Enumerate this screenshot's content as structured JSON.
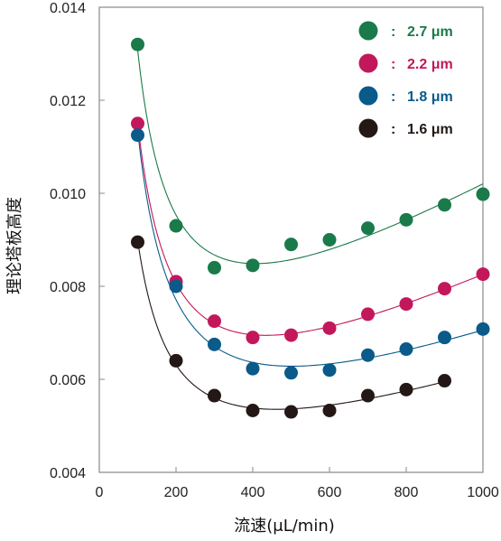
{
  "chart_data": {
    "type": "scatter",
    "xlabel": "流速(μL/min)",
    "ylabel": "理论塔板高度",
    "xlim": [
      0,
      1000
    ],
    "ylim": [
      0.004,
      0.014
    ],
    "xticks": [
      "0",
      "200",
      "400",
      "600",
      "800",
      "1000"
    ],
    "yticks": [
      "0.004",
      "0.006",
      "0.008",
      "0.010",
      "0.012",
      "0.014"
    ],
    "grid": false,
    "legend_position": "top-right",
    "series": [
      {
        "name": "2.7 μm",
        "color": "#1a7a4a",
        "x": [
          100,
          200,
          300,
          400,
          500,
          600,
          700,
          800,
          900,
          1000
        ],
        "y": [
          0.0132,
          0.0093,
          0.0084,
          0.00845,
          0.0089,
          0.009,
          0.00925,
          0.00943,
          0.00975,
          0.00998
        ]
      },
      {
        "name": "2.2 μm",
        "color": "#c2185b",
        "x": [
          100,
          200,
          300,
          400,
          500,
          600,
          700,
          800,
          900,
          1000
        ],
        "y": [
          0.0115,
          0.0081,
          0.00725,
          0.0069,
          0.00695,
          0.0071,
          0.0074,
          0.00762,
          0.00795,
          0.00826
        ]
      },
      {
        "name": "1.8 μm",
        "color": "#0a5a8a",
        "x": [
          100,
          200,
          300,
          400,
          500,
          600,
          700,
          800,
          900,
          1000
        ],
        "y": [
          0.01125,
          0.008,
          0.00675,
          0.00623,
          0.00614,
          0.0062,
          0.00652,
          0.00665,
          0.0069,
          0.00708
        ]
      },
      {
        "name": "1.6 μm",
        "color": "#231815",
        "x": [
          100,
          200,
          300,
          400,
          500,
          600,
          700,
          800,
          900
        ],
        "y": [
          0.00895,
          0.0064,
          0.00565,
          0.00533,
          0.0053,
          0.00533,
          0.00565,
          0.00578,
          0.00597
        ]
      }
    ]
  }
}
